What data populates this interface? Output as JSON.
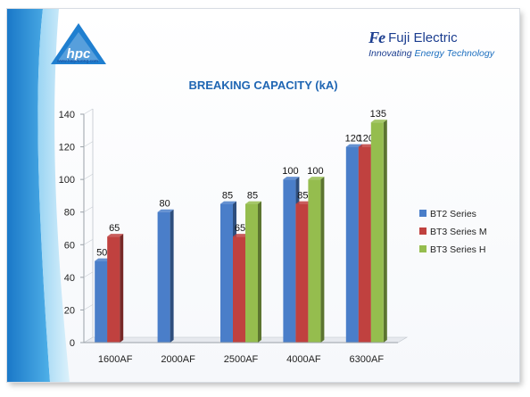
{
  "header": {
    "left_logo_text": "hpc",
    "left_logo_url": "www.haiphuong.com",
    "brand_mark": "Fe",
    "brand_name": "Fuji Electric",
    "tagline_part1": "Innovating ",
    "tagline_part2": "Energy Technology"
  },
  "chart_data": {
    "type": "bar",
    "title": "BREAKING CAPACITY (kA)",
    "categories": [
      "1600AF",
      "2000AF",
      "2500AF",
      "4000AF",
      "6300AF"
    ],
    "series": [
      {
        "name": "BT2 Series",
        "color": "#4a7ec9",
        "values": [
          50,
          80,
          85,
          100,
          120
        ]
      },
      {
        "name": "BT3 Series M",
        "color": "#c0413f",
        "values": [
          65,
          null,
          65,
          85,
          120
        ]
      },
      {
        "name": "BT3 Series H",
        "color": "#95bd4e",
        "values": [
          null,
          null,
          85,
          100,
          135
        ]
      }
    ],
    "ylim": [
      0,
      140
    ],
    "yticks": [
      0,
      20,
      40,
      60,
      80,
      100,
      120,
      140
    ],
    "grid": false,
    "legend_position": "right"
  }
}
